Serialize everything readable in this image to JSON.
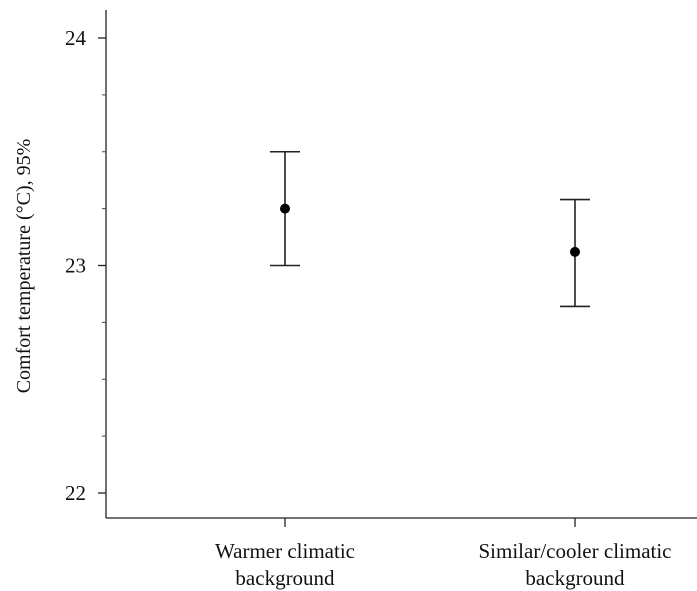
{
  "chart_data": {
    "type": "scatter",
    "ylabel": "Comfort temperature (°C), 95%",
    "ylim": [
      22,
      24
    ],
    "yticks": [
      22,
      23,
      24
    ],
    "grid": false,
    "categories": [
      {
        "lines": [
          "Warmer climatic",
          "background"
        ]
      },
      {
        "lines": [
          "Similar/cooler climatic",
          "background"
        ]
      }
    ],
    "points": [
      {
        "mean": 23.25,
        "lower": 23.0,
        "upper": 23.5
      },
      {
        "mean": 23.06,
        "lower": 22.82,
        "upper": 23.29
      }
    ]
  }
}
